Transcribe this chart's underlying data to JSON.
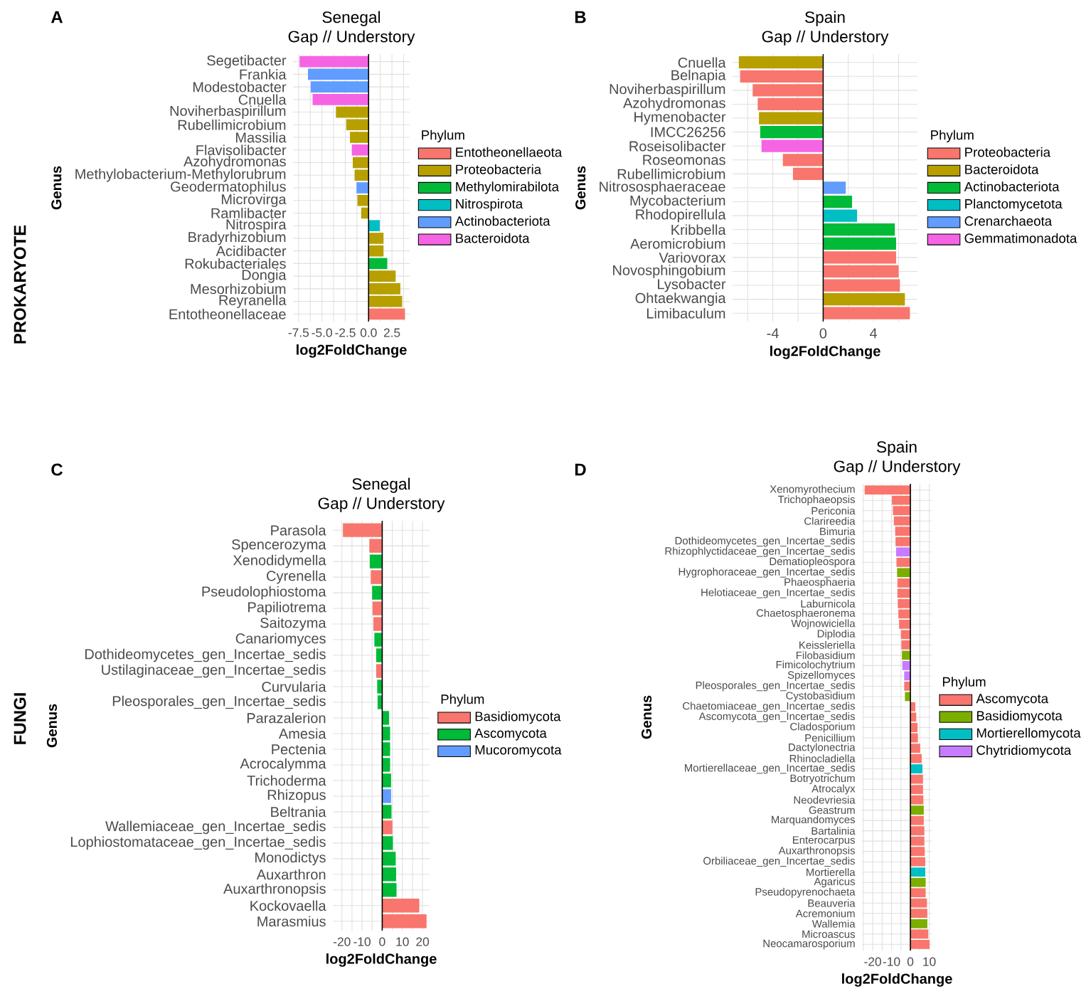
{
  "chart_data": [
    {
      "type": "bar",
      "orientation": "horizontal",
      "title": "Senegal",
      "subtitle": "Gap // Understory",
      "xlabel": "log2FoldChange",
      "ylabel": "Genus",
      "legend_title": "Phylum",
      "categories": [
        "Segetibacter",
        "Frankia",
        "Modestobacter",
        "Cnuella",
        "Noviherbaspirillum",
        "Rubellimicrobium",
        "Massilia",
        "Flavisolibacter",
        "Azohydromonas",
        "Methylobacterium-Methylorubrum",
        "Geodermatophilus",
        "Microvirga",
        "Ramlibacter",
        "Nitrospira",
        "Bradyrhizobium",
        "Acidibacter",
        "Rokubacteriales",
        "Dongia",
        "Mesorhizobium",
        "Reyranella",
        "Entotheonellaceae"
      ],
      "series": [
        {
          "name": "Entotheonellaeota",
          "color": "#f8766d",
          "values": [
            null,
            null,
            null,
            null,
            null,
            null,
            null,
            null,
            null,
            null,
            null,
            null,
            null,
            null,
            null,
            null,
            null,
            null,
            null,
            null,
            3.9
          ]
        },
        {
          "name": "Proteobacteria",
          "color": "#b79f00",
          "values": [
            null,
            null,
            null,
            null,
            -3.5,
            -2.4,
            -2.0,
            null,
            -1.7,
            -1.5,
            null,
            -1.2,
            -0.8,
            null,
            1.6,
            1.6,
            null,
            2.9,
            3.4,
            3.6,
            null
          ]
        },
        {
          "name": "Methylomirabilota",
          "color": "#00ba38",
          "values": [
            null,
            null,
            null,
            null,
            null,
            null,
            null,
            null,
            null,
            null,
            null,
            null,
            null,
            null,
            null,
            null,
            2.0,
            null,
            null,
            null,
            null
          ]
        },
        {
          "name": "Nitrospirota",
          "color": "#00bfc4",
          "values": [
            null,
            null,
            null,
            null,
            null,
            null,
            null,
            null,
            null,
            null,
            null,
            null,
            null,
            1.2,
            null,
            null,
            null,
            null,
            null,
            null,
            null
          ]
        },
        {
          "name": "Actinobacteriota",
          "color": "#619cff",
          "values": [
            null,
            -6.5,
            -6.2,
            null,
            null,
            null,
            null,
            null,
            null,
            null,
            -1.3,
            null,
            null,
            null,
            null,
            null,
            null,
            null,
            null,
            null,
            null
          ]
        },
        {
          "name": "Bacteroidota",
          "color": "#f564e3",
          "values": [
            -7.4,
            null,
            null,
            -6.0,
            null,
            null,
            null,
            -1.8,
            null,
            null,
            null,
            null,
            null,
            null,
            null,
            null,
            null,
            null,
            null,
            null,
            null
          ]
        }
      ],
      "xlim": [
        -8.1,
        4.4
      ],
      "xticks": [
        -7.5,
        {
          "value": -6.25,
          "label": null
        },
        {
          "value": -5,
          "label": "-5.0"
        },
        {
          "value": -3.75,
          "label": null
        },
        -2.5,
        {
          "value": -1.25,
          "label": null
        },
        {
          "value": 0,
          "label": "0.0"
        },
        {
          "value": 1.25,
          "label": null
        },
        2.5,
        {
          "value": 3.75,
          "label": null
        }
      ],
      "grid": true,
      "legend": "right",
      "ref_lines": [
        {
          "axis": "x",
          "value": 0,
          "color": "#000000"
        }
      ],
      "annotations": [
        "A",
        "PROKARYOTE"
      ]
    },
    {
      "type": "bar",
      "orientation": "horizontal",
      "title": "Spain",
      "subtitle": "Gap // Understory",
      "xlabel": "log2FoldChange",
      "ylabel": "Genus",
      "legend_title": "Phylum",
      "categories": [
        "Cnuella",
        "Belnapia",
        "Noviherbaspirillum",
        "Azohydromonas",
        "Hymenobacter",
        "IMCC26256",
        "Roseisolibacter",
        "Roseomonas",
        "Rubellimicrobium",
        "Nitrososphaeraceae",
        "Mycobacterium",
        "Rhodopirellula",
        "Kribbella",
        "Aeromicrobium",
        "Variovorax",
        "Novosphingobium",
        "Lysobacter",
        "Ohtaekwangia",
        "Limibaculum"
      ],
      "series": [
        {
          "name": "Proteobacteria",
          "color": "#f8766d",
          "values": [
            null,
            -6.6,
            -5.6,
            -5.2,
            null,
            null,
            null,
            -3.2,
            -2.4,
            null,
            null,
            null,
            null,
            null,
            5.8,
            6.0,
            6.1,
            null,
            6.9
          ]
        },
        {
          "name": "Bacteroidota",
          "color": "#b79f00",
          "values": [
            -6.7,
            null,
            null,
            null,
            -5.1,
            null,
            null,
            null,
            null,
            null,
            null,
            null,
            null,
            null,
            null,
            null,
            null,
            6.5,
            null
          ]
        },
        {
          "name": "Actinobacteriota",
          "color": "#00ba38",
          "values": [
            null,
            null,
            null,
            null,
            null,
            -5.0,
            null,
            null,
            null,
            null,
            2.3,
            null,
            5.7,
            5.8,
            null,
            null,
            null,
            null,
            null
          ]
        },
        {
          "name": "Planctomycetota",
          "color": "#00bfc4",
          "values": [
            null,
            null,
            null,
            null,
            null,
            null,
            null,
            null,
            null,
            null,
            null,
            2.7,
            null,
            null,
            null,
            null,
            null,
            null,
            null
          ]
        },
        {
          "name": "Crenarchaeota",
          "color": "#619cff",
          "values": [
            null,
            null,
            null,
            null,
            null,
            null,
            null,
            null,
            null,
            1.8,
            null,
            null,
            null,
            null,
            null,
            null,
            null,
            null,
            null
          ]
        },
        {
          "name": "Gemmatimonadota",
          "color": "#f564e3",
          "values": [
            null,
            null,
            null,
            null,
            null,
            null,
            -4.9,
            null,
            null,
            null,
            null,
            null,
            null,
            null,
            null,
            null,
            null,
            null,
            null
          ]
        }
      ],
      "xlim": [
        -7.2,
        7.5
      ],
      "xticks": [
        {
          "value": -6,
          "label": null
        },
        -4,
        {
          "value": -2,
          "label": null
        },
        0,
        {
          "value": 2,
          "label": null
        },
        4,
        {
          "value": 6,
          "label": null
        }
      ],
      "grid": true,
      "legend": "right",
      "ref_lines": [
        {
          "axis": "x",
          "value": 0,
          "color": "#000000"
        }
      ],
      "annotations": [
        "B"
      ]
    },
    {
      "type": "bar",
      "orientation": "horizontal",
      "title": "Senegal",
      "subtitle": "Gap // Understory",
      "xlabel": "log2FoldChange",
      "ylabel": "Genus",
      "legend_title": "Phylum",
      "categories": [
        "Parasola",
        "Spencerozyma",
        "Xenodidymella",
        "Cyrenella",
        "Pseudolophiostoma",
        "Papiliotrema",
        "Saitozyma",
        "Canariomyces",
        "Dothideomycetes_gen_Incertae_sedis",
        "Ustilaginaceae_gen_Incertae_sedis",
        "Curvularia",
        "Pleosporales_gen_Incertae_sedis",
        "Parazalerion",
        "Amesia",
        "Pectenia",
        "Acrocalymma",
        "Trichoderma",
        "Rhizopus",
        "Beltrania",
        "Wallemiaceae_gen_Incertae_sedis",
        "Lophiostomataceae_gen_Incertae_sedis",
        "Monodictys",
        "Auxarthron",
        "Auxarthronopsis",
        "Kockovaella",
        "Marasmius"
      ],
      "series": [
        {
          "name": "Basidiomycota",
          "color": "#f8766d",
          "values": [
            -19.5,
            -6.4,
            null,
            -5.7,
            null,
            -4.8,
            -4.4,
            null,
            null,
            -3.0,
            null,
            null,
            null,
            null,
            null,
            null,
            null,
            null,
            null,
            5.1,
            null,
            null,
            null,
            null,
            18.4,
            22.0
          ]
        },
        {
          "name": "Ascomycota",
          "color": "#00ba38",
          "values": [
            null,
            null,
            -6.2,
            null,
            -5.0,
            null,
            null,
            -3.9,
            -3.0,
            null,
            -2.5,
            -2.3,
            3.4,
            3.9,
            3.9,
            3.9,
            4.4,
            null,
            4.6,
            null,
            5.3,
            6.7,
            6.9,
            7.1,
            null,
            null
          ]
        },
        {
          "name": "Mucoromycota",
          "color": "#619cff",
          "values": [
            null,
            null,
            null,
            null,
            null,
            null,
            null,
            null,
            null,
            null,
            null,
            null,
            null,
            null,
            null,
            null,
            null,
            4.4,
            null,
            null,
            null,
            null,
            null,
            null,
            null,
            null
          ]
        }
      ],
      "xlim": [
        -24.5,
        23.5
      ],
      "xticks": [
        -20,
        {
          "value": -15,
          "label": null
        },
        -10,
        {
          "value": -5,
          "label": null
        },
        0,
        {
          "value": 5,
          "label": null
        },
        10,
        {
          "value": 15,
          "label": null
        },
        20
      ],
      "grid": true,
      "legend": "right",
      "ref_lines": [
        {
          "axis": "x",
          "value": 0,
          "color": "#000000"
        }
      ],
      "annotations": [
        "C",
        "FUNGI"
      ]
    },
    {
      "type": "bar",
      "orientation": "horizontal",
      "title": "Spain",
      "subtitle": "Gap // Understory",
      "xlabel": "log2FoldChange",
      "ylabel": "Genus",
      "legend_title": "Phylum",
      "categories": [
        "Xenomyrothecium",
        "Trichophaeopsis",
        "Periconia",
        "Clarireedia",
        "Bimuria",
        "Dothideomycetes_gen_Incertae_sedis",
        "Rhizophlyctidaceae_gen_Incertae_sedis",
        "Dematiopleospora",
        "Hygrophoraceae_gen_Incertae_sedis",
        "Phaeosphaeria",
        "Helotiaceae_gen_Incertae_sedis",
        "Laburnicola",
        "Chaetosphaeronema",
        "Wojnowiciella",
        "Diplodia",
        "Keissleriella",
        "Filobasidium",
        "Fimicolochytrium",
        "Spizellomyces",
        "Pleosporales_gen_Incertae_sedis",
        "Cystobasidium",
        "Chaetomiaceae_gen_Incertae_sedis",
        "Ascomycota_gen_Incertae_sedis",
        "Cladosporium",
        "Penicillium",
        "Dactylonectria",
        "Rhinocladiella",
        "Mortierellaceae_gen_Incertae_sedis",
        "Botryotrichum",
        "Atrocalyx",
        "Neodevriesia",
        "Geastrum",
        "Marquandomyces",
        "Bartalinia",
        "Enterocarpus",
        "Auxarthronopsis",
        "Orbiliaceae_gen_Incertae_sedis",
        "Mortierella",
        "Agaricus",
        "Pseudopyrenochaeta",
        "Beauveria",
        "Acremonium",
        "Wallemia",
        "Microascus",
        "Neocamarosporium"
      ],
      "series": [
        {
          "name": "Ascomycota",
          "color": "#f8766d",
          "values": [
            -24.3,
            -9.8,
            -9.3,
            -8.8,
            -8.1,
            -7.9,
            null,
            -7.4,
            null,
            -6.9,
            -6.9,
            -6.7,
            -6.4,
            -6.0,
            -5.0,
            -4.8,
            null,
            null,
            null,
            -3.3,
            null,
            2.6,
            3.1,
            3.8,
            4.0,
            5.2,
            6.0,
            null,
            6.7,
            6.7,
            6.9,
            null,
            7.1,
            7.4,
            7.4,
            7.6,
            7.9,
            null,
            null,
            8.1,
            8.8,
            9.0,
            null,
            9.5,
            10.2
          ]
        },
        {
          "name": "Basidiomycota",
          "color": "#7cae00",
          "values": [
            null,
            null,
            null,
            null,
            null,
            null,
            null,
            null,
            -7.1,
            null,
            null,
            null,
            null,
            null,
            null,
            null,
            -4.5,
            null,
            null,
            null,
            -2.9,
            null,
            null,
            null,
            null,
            null,
            null,
            null,
            null,
            null,
            null,
            7.1,
            null,
            null,
            null,
            null,
            null,
            null,
            8.1,
            null,
            null,
            null,
            9.0,
            null,
            null
          ]
        },
        {
          "name": "Mortierellomycota",
          "color": "#00bfc4",
          "values": [
            null,
            null,
            null,
            null,
            null,
            null,
            null,
            null,
            null,
            null,
            null,
            null,
            null,
            null,
            null,
            null,
            null,
            null,
            null,
            null,
            null,
            null,
            null,
            null,
            null,
            null,
            null,
            6.4,
            null,
            null,
            null,
            null,
            null,
            null,
            null,
            null,
            null,
            7.9,
            null,
            null,
            null,
            null,
            null,
            null,
            null
          ]
        },
        {
          "name": "Chytridiomycota",
          "color": "#c77cff",
          "values": [
            null,
            null,
            null,
            null,
            null,
            null,
            -7.6,
            null,
            null,
            null,
            null,
            null,
            null,
            null,
            null,
            null,
            null,
            -4.3,
            -3.3,
            null,
            null,
            null,
            null,
            null,
            null,
            null,
            null,
            null,
            null,
            null,
            null,
            null,
            null,
            null,
            null,
            null,
            null,
            null,
            null,
            null,
            null,
            null,
            null,
            null,
            null
          ]
        }
      ],
      "xlim": [
        -25.7,
        11.3
      ],
      "xticks": [
        {
          "value": -25,
          "label": null
        },
        -20,
        {
          "value": -15,
          "label": null
        },
        -10,
        {
          "value": -5,
          "label": null
        },
        0,
        {
          "value": 5,
          "label": null
        },
        10
      ],
      "grid": true,
      "legend": "right",
      "ref_lines": [
        {
          "axis": "x",
          "value": 0,
          "color": "#000000"
        }
      ],
      "annotations": [
        "D"
      ]
    }
  ]
}
